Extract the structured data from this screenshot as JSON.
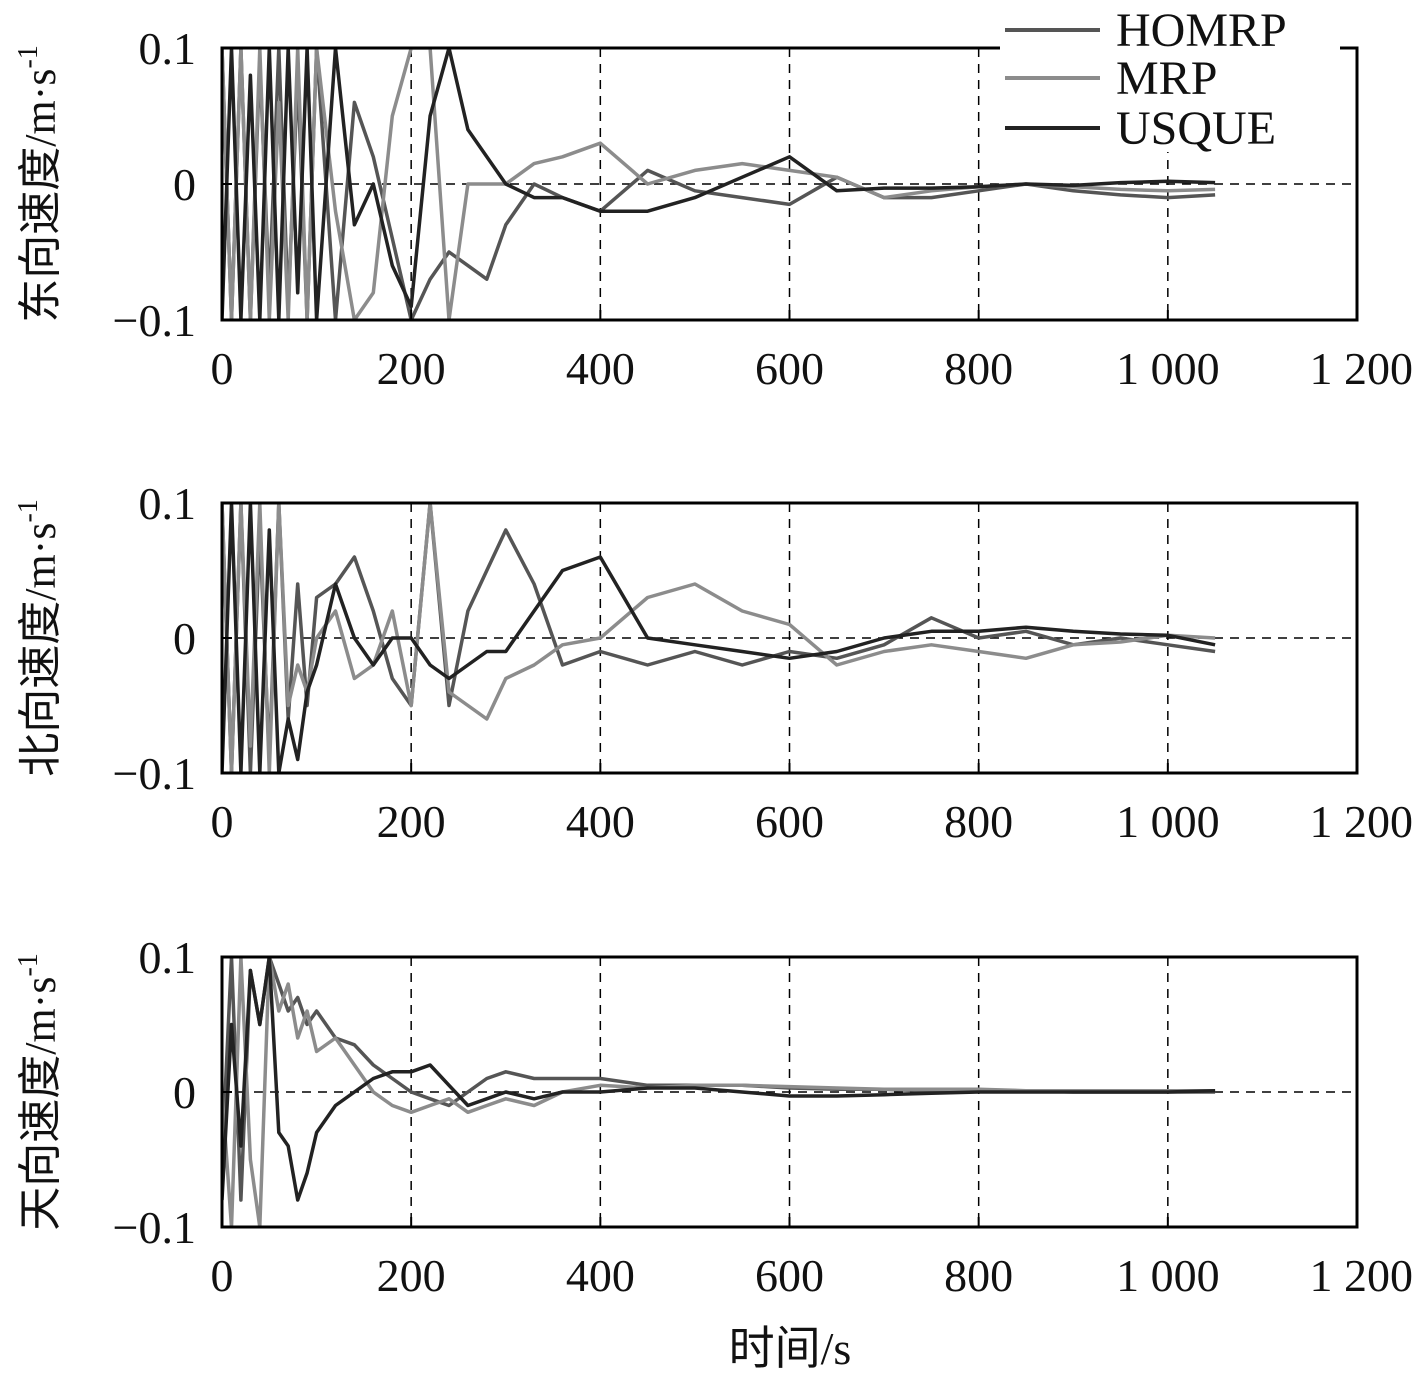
{
  "legend": {
    "placement": "top-right",
    "items": [
      {
        "label": "HOMRP",
        "color": "#555555"
      },
      {
        "label": "MRP",
        "color": "#8c8c8c"
      },
      {
        "label": "USQUE",
        "color": "#222222"
      }
    ]
  },
  "chart_data": [
    {
      "type": "line",
      "ylabel": "东向速度/m·s",
      "ylabel_sup": "-1",
      "xlim": [
        0,
        1200
      ],
      "ylim": [
        -0.1,
        0.1
      ],
      "xticks": [
        0,
        200,
        400,
        600,
        800,
        1000,
        1200
      ],
      "xtick_labels": [
        "0",
        "200",
        "400",
        "600",
        "800",
        "1 000",
        "1 200"
      ],
      "yticks": [
        -0.1,
        0,
        0.1
      ],
      "ytick_labels": [
        "−0.1",
        "0",
        "0.1"
      ],
      "grid": "dashed vertical at x ticks, dashed horizontal at y=0",
      "x": [
        0,
        10,
        20,
        30,
        40,
        50,
        60,
        70,
        80,
        90,
        100,
        120,
        140,
        160,
        180,
        200,
        220,
        240,
        260,
        280,
        300,
        330,
        360,
        400,
        450,
        500,
        550,
        600,
        650,
        700,
        750,
        800,
        850,
        900,
        950,
        1000,
        1050
      ],
      "series": [
        {
          "name": "HOMRP",
          "color": "#555555",
          "values": [
            0.1,
            -0.1,
            0.1,
            -0.1,
            0.09,
            -0.08,
            0.1,
            -0.09,
            0.08,
            -0.1,
            0.1,
            -0.1,
            0.06,
            0.02,
            -0.04,
            -0.1,
            -0.07,
            -0.05,
            -0.06,
            -0.07,
            -0.03,
            0.0,
            -0.01,
            -0.02,
            0.01,
            -0.005,
            -0.01,
            -0.015,
            0.005,
            -0.01,
            -0.01,
            -0.005,
            0.0,
            -0.005,
            -0.008,
            -0.01,
            -0.008
          ]
        },
        {
          "name": "MRP",
          "color": "#8c8c8c",
          "values": [
            0.1,
            -0.1,
            0.1,
            -0.1,
            0.1,
            -0.1,
            0.06,
            -0.1,
            0.1,
            -0.1,
            0.1,
            -0.02,
            -0.1,
            -0.08,
            0.05,
            0.1,
            0.1,
            -0.1,
            0.0,
            0.0,
            0.0,
            0.015,
            0.02,
            0.03,
            0.0,
            0.01,
            0.015,
            0.01,
            0.005,
            -0.01,
            -0.005,
            -0.002,
            0.0,
            -0.002,
            -0.004,
            -0.005,
            -0.004
          ]
        },
        {
          "name": "USQUE",
          "color": "#222222",
          "values": [
            -0.1,
            0.1,
            -0.1,
            0.08,
            -0.1,
            0.1,
            -0.1,
            0.1,
            -0.08,
            0.1,
            -0.1,
            0.1,
            -0.03,
            0.0,
            -0.06,
            -0.09,
            0.05,
            0.1,
            0.04,
            0.02,
            0.0,
            -0.01,
            -0.01,
            -0.02,
            -0.02,
            -0.01,
            0.005,
            0.02,
            -0.005,
            -0.003,
            -0.003,
            -0.002,
            0.0,
            -0.001,
            0.001,
            0.002,
            0.001
          ]
        }
      ]
    },
    {
      "type": "line",
      "ylabel": "北向速度/m·s",
      "ylabel_sup": "-1",
      "xlim": [
        0,
        1200
      ],
      "ylim": [
        -0.1,
        0.1
      ],
      "xticks": [
        0,
        200,
        400,
        600,
        800,
        1000,
        1200
      ],
      "xtick_labels": [
        "0",
        "200",
        "400",
        "600",
        "800",
        "1 000",
        "1 200"
      ],
      "yticks": [
        -0.1,
        0,
        0.1
      ],
      "ytick_labels": [
        "−0.1",
        "0",
        "0.1"
      ],
      "grid": "dashed vertical at x ticks, dashed horizontal at y=0",
      "x": [
        0,
        10,
        20,
        30,
        40,
        50,
        60,
        70,
        80,
        90,
        100,
        120,
        140,
        160,
        180,
        200,
        220,
        240,
        260,
        280,
        300,
        330,
        360,
        400,
        450,
        500,
        550,
        600,
        650,
        700,
        750,
        800,
        850,
        900,
        950,
        1000,
        1050
      ],
      "series": [
        {
          "name": "HOMRP",
          "color": "#555555",
          "values": [
            0.1,
            -0.1,
            0.1,
            -0.1,
            0.08,
            -0.09,
            0.1,
            -0.06,
            0.04,
            -0.05,
            0.03,
            0.04,
            0.06,
            0.02,
            -0.03,
            -0.05,
            0.1,
            -0.05,
            0.02,
            0.05,
            0.08,
            0.04,
            -0.02,
            -0.01,
            -0.02,
            -0.01,
            -0.02,
            -0.01,
            -0.015,
            -0.005,
            0.015,
            0.0,
            0.005,
            -0.005,
            0.0,
            -0.005,
            -0.01
          ]
        },
        {
          "name": "MRP",
          "color": "#8c8c8c",
          "values": [
            0.1,
            -0.1,
            0.1,
            -0.08,
            0.1,
            -0.1,
            0.1,
            -0.05,
            -0.02,
            -0.04,
            0.0,
            0.02,
            -0.03,
            -0.02,
            0.02,
            -0.05,
            0.1,
            -0.04,
            -0.05,
            -0.06,
            -0.03,
            -0.02,
            -0.005,
            0.0,
            0.03,
            0.04,
            0.02,
            0.01,
            -0.02,
            -0.01,
            -0.005,
            -0.01,
            -0.015,
            -0.005,
            -0.003,
            0.002,
            0.0
          ]
        },
        {
          "name": "USQUE",
          "color": "#222222",
          "values": [
            -0.1,
            0.1,
            -0.1,
            0.1,
            -0.1,
            0.08,
            -0.1,
            -0.06,
            -0.09,
            -0.04,
            -0.02,
            0.04,
            0.0,
            -0.02,
            0.0,
            0.0,
            -0.02,
            -0.03,
            -0.02,
            -0.01,
            -0.01,
            0.02,
            0.05,
            0.06,
            0.0,
            -0.005,
            -0.01,
            -0.015,
            -0.01,
            0.0,
            0.005,
            0.005,
            0.008,
            0.005,
            0.003,
            0.002,
            -0.005
          ]
        }
      ]
    },
    {
      "type": "line",
      "ylabel": "天向速度/m·s",
      "ylabel_sup": "-1",
      "xlabel": "时间/s",
      "xlim": [
        0,
        1200
      ],
      "ylim": [
        -0.1,
        0.1
      ],
      "xticks": [
        0,
        200,
        400,
        600,
        800,
        1000,
        1200
      ],
      "xtick_labels": [
        "0",
        "200",
        "400",
        "600",
        "800",
        "1 000",
        "1 200"
      ],
      "yticks": [
        -0.1,
        0,
        0.1
      ],
      "ytick_labels": [
        "−0.1",
        "0",
        "0.1"
      ],
      "grid": "dashed vertical at x ticks, dashed horizontal at y=0",
      "x": [
        0,
        10,
        20,
        30,
        40,
        50,
        60,
        70,
        80,
        90,
        100,
        120,
        140,
        160,
        180,
        200,
        220,
        240,
        260,
        280,
        300,
        330,
        360,
        400,
        450,
        500,
        550,
        600,
        650,
        700,
        750,
        800,
        850,
        900,
        950,
        1000,
        1050
      ],
      "series": [
        {
          "name": "HOMRP",
          "color": "#555555",
          "values": [
            -0.05,
            0.1,
            -0.08,
            0.09,
            0.05,
            0.1,
            0.08,
            0.06,
            0.07,
            0.05,
            0.06,
            0.04,
            0.035,
            0.02,
            0.01,
            0.0,
            -0.005,
            -0.01,
            0.0,
            0.01,
            0.015,
            0.01,
            0.01,
            0.01,
            0.005,
            0.005,
            0.005,
            0.003,
            0.002,
            0.002,
            0.001,
            0.001,
            0.001,
            0.0,
            0.0,
            0.0,
            0.0
          ]
        },
        {
          "name": "MRP",
          "color": "#8c8c8c",
          "values": [
            0.0,
            -0.1,
            0.1,
            -0.05,
            -0.1,
            0.1,
            0.06,
            0.08,
            0.04,
            0.06,
            0.03,
            0.04,
            0.02,
            0.0,
            -0.01,
            -0.015,
            -0.01,
            -0.005,
            -0.015,
            -0.01,
            -0.005,
            -0.01,
            0.0,
            0.005,
            0.003,
            0.005,
            0.005,
            0.004,
            0.003,
            0.002,
            0.002,
            0.002,
            0.001,
            0.001,
            0.001,
            0.001,
            0.001
          ]
        },
        {
          "name": "USQUE",
          "color": "#222222",
          "values": [
            -0.08,
            0.05,
            -0.04,
            0.09,
            0.05,
            0.1,
            -0.03,
            -0.04,
            -0.08,
            -0.06,
            -0.03,
            -0.01,
            0.0,
            0.01,
            0.015,
            0.015,
            0.02,
            0.005,
            -0.01,
            -0.005,
            0.0,
            -0.005,
            0.0,
            0.0,
            0.003,
            0.003,
            0.0,
            -0.003,
            -0.003,
            -0.002,
            -0.001,
            0.0,
            0.0,
            0.0,
            0.0,
            0.0,
            0.001
          ]
        }
      ]
    }
  ]
}
